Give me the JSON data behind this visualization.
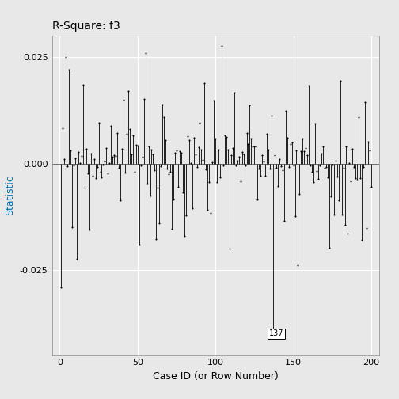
{
  "title": "R-Square: f3",
  "xlabel": "Case ID (or Row Number)",
  "ylabel": "Statistic",
  "ylim": [
    -0.045,
    0.03
  ],
  "yticks": [
    -0.025,
    0.0,
    0.025
  ],
  "xticks": [
    0,
    50,
    100,
    150,
    200
  ],
  "n": 200,
  "annotated_case": 137,
  "outer_bg": "#E8E8E8",
  "panel_bg": "#E8E8E8",
  "line_color": "#000000",
  "dot_color": "#000000",
  "grid_color": "#FFFFFF",
  "ylabel_color": "#0072B2",
  "title_fontsize": 10,
  "axis_fontsize": 8,
  "label_fontsize": 9,
  "seed": 99
}
